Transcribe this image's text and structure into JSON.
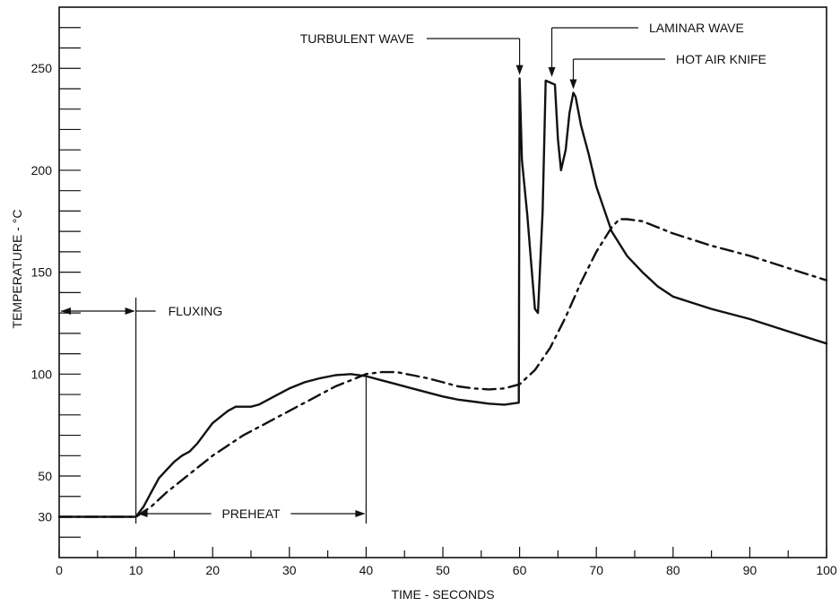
{
  "chart_data": {
    "type": "line",
    "xlabel": "TIME - SECONDS",
    "ylabel": "TEMPERATURE - °C",
    "xlim": [
      0,
      100
    ],
    "ylim": [
      10,
      280
    ],
    "x_ticks": [
      0,
      10,
      20,
      30,
      40,
      50,
      60,
      70,
      80,
      90,
      100
    ],
    "y_ticks": [
      30,
      50,
      100,
      150,
      200,
      250
    ],
    "grid": false,
    "legend": "none",
    "series": [
      {
        "style": "solid",
        "x": [
          0,
          10,
          11,
          12,
          13,
          14,
          15,
          16,
          17,
          18,
          19,
          20,
          21,
          22,
          23,
          24,
          25,
          26,
          27,
          28,
          30,
          32,
          34,
          36,
          38,
          40,
          42,
          44,
          46,
          48,
          50,
          52,
          54,
          56,
          58,
          59.9,
          60,
          60.3,
          61,
          61.5,
          62,
          62.4,
          63,
          63.4,
          64,
          64.6,
          65,
          65.4,
          66,
          66.5,
          67,
          67.3,
          68,
          69,
          70,
          72,
          74,
          76,
          78,
          80,
          85,
          90,
          95,
          100
        ],
        "y": [
          30,
          30,
          35,
          42,
          49,
          53,
          57,
          60,
          62,
          66,
          71,
          76,
          79,
          82,
          84,
          84,
          84,
          85,
          87,
          89,
          93,
          96,
          98,
          99.5,
          100,
          99,
          97,
          95,
          93,
          91,
          89,
          87.5,
          86.5,
          85.5,
          85,
          86,
          245,
          205,
          178,
          155,
          132,
          130,
          180,
          244,
          243,
          242,
          215,
          200,
          210,
          228,
          238,
          236,
          222,
          208,
          192,
          170,
          158,
          150,
          143,
          138,
          132,
          127,
          121,
          115
        ]
      },
      {
        "style": "dash-dot",
        "x": [
          0,
          10,
          12,
          14,
          16,
          18,
          20,
          22,
          24,
          26,
          28,
          30,
          32,
          34,
          36,
          38,
          40,
          42,
          44,
          46,
          48,
          50,
          52,
          54,
          56,
          58,
          60,
          62,
          64,
          66,
          68,
          70,
          72,
          73,
          74,
          76,
          78,
          80,
          85,
          90,
          95,
          100
        ],
        "y": [
          30,
          30,
          35,
          42,
          48,
          54,
          60,
          65,
          70,
          74,
          78,
          82,
          86,
          90,
          94,
          97,
          100,
          101,
          101,
          99.5,
          98,
          96,
          94,
          93,
          92.5,
          93,
          95,
          102,
          113,
          128,
          145,
          160,
          172,
          176,
          176,
          175,
          172,
          169,
          163,
          158,
          152,
          146
        ]
      }
    ],
    "annotations": {
      "fluxing": {
        "label": "FLUXING",
        "x_start": 0,
        "x_end": 10
      },
      "preheat": {
        "label": "PREHEAT",
        "x_start": 10,
        "x_end": 40
      },
      "turbulent_wave": {
        "label": "TURBULENT WAVE",
        "x": 60,
        "y": 245
      },
      "laminar_wave": {
        "label": "LAMINAR WAVE",
        "x": 64.2,
        "y": 244
      },
      "hot_air_knife": {
        "label": "HOT AIR KNIFE",
        "x": 67,
        "y": 238
      }
    }
  }
}
